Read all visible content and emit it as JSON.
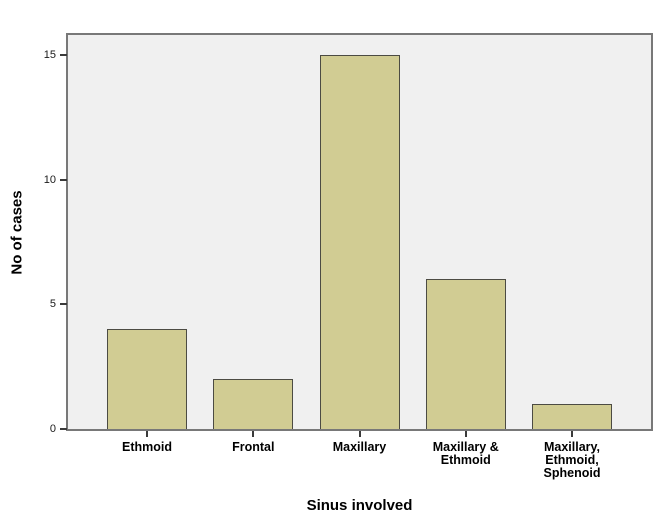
{
  "chart_data": {
    "type": "bar",
    "title": "",
    "xlabel": "Sinus involved",
    "ylabel": "No of cases",
    "categories": [
      "Ethmoid",
      "Frontal",
      "Maxillary",
      "Maxillary &\nEthmoid",
      "Maxillary,\nEthmoid,\nSphenoid"
    ],
    "values": [
      4,
      2,
      15,
      6,
      1
    ],
    "yticks": [
      0,
      5,
      10,
      15
    ],
    "ylim": [
      0,
      15.8
    ],
    "grid": false,
    "legend": "none",
    "colors": {
      "bar_fill": "#d1cc93",
      "bar_border": "#4c4b43",
      "plot_background": "#f0f0f0",
      "frame_border": "#787878",
      "text": "#000000"
    }
  }
}
